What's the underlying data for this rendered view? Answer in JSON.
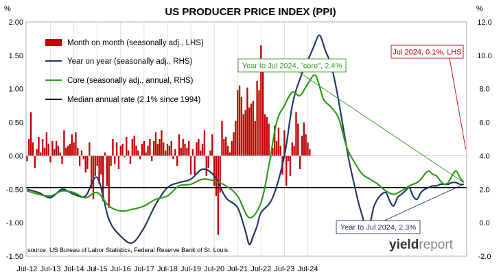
{
  "chart_data": {
    "type": "bar+line",
    "title": "US PRODUCER PRICE INDEX (PPI)",
    "left_axis": {
      "unit": "%",
      "ticks": [
        "2.00",
        "1.50",
        "1.00",
        "0.50",
        "0.00",
        "-0.50",
        "-1.00",
        "-1.50"
      ],
      "ylim": [
        -1.5,
        2.0
      ]
    },
    "right_axis": {
      "unit": "%",
      "ticks": [
        "12.0",
        "10.0",
        "8.0",
        "6.0",
        "4.0",
        "2.0",
        "0.0",
        "-2.0"
      ],
      "ylim": [
        -2.0,
        12.0
      ]
    },
    "x_ticks": [
      "Jul-12",
      "Jul-13",
      "Jul-14",
      "Jul-15",
      "Jul-16",
      "Jul-17",
      "Jul-18",
      "Jul-19",
      "Jul-20",
      "Jul-21",
      "Jul-22",
      "Jul-23",
      "Jul-24"
    ],
    "grid": "vertical",
    "legend_position": "top-left",
    "colors": {
      "mom": "#c00000",
      "yoy": "#1f3864",
      "core": "#2e9b1a",
      "median": "#000000"
    },
    "series": [
      {
        "name": "Month on month (seasonally adj., LHS)",
        "type": "bar",
        "axis": "left",
        "values": [
          -0.08,
          0.25,
          0.65,
          0.2,
          -0.18,
          0.1,
          0.28,
          0.05,
          0.25,
          0.12,
          0.35,
          0.18,
          -0.1,
          0.22,
          0.1,
          0.22,
          0.15,
          0.05,
          -0.12,
          0.38,
          0.12,
          0.15,
          0.18,
          0.32,
          0.2,
          0.35,
          0.12,
          -0.15,
          0.08,
          -0.05,
          -0.25,
          -0.2,
          0.2,
          -0.48,
          -0.65,
          -0.3,
          -0.15,
          -0.42,
          -0.28,
          -0.68,
          0.05,
          -0.45,
          -0.78,
          -0.15,
          0.25,
          -0.12,
          0.2,
          -0.2,
          0.15,
          0.18,
          -0.02,
          0.28,
          0.08,
          -0.12,
          0.25,
          0.3,
          0.15,
          0.08,
          -0.05,
          0.18,
          0.22,
          0.05,
          0.15,
          0.25,
          -0.08,
          0.22,
          0.35,
          0.18,
          0.25,
          0.38,
          0.2,
          0.08,
          0.18,
          0.15,
          0.22,
          -0.05,
          0.1,
          -0.15,
          0.32,
          0.12,
          0.25,
          0.18,
          0.12,
          0.22,
          -0.28,
          0.1,
          -0.28,
          0.2,
          0.25,
          0.08,
          0.18,
          0.38,
          -0.3,
          -0.18,
          0.08,
          0.32,
          -0.45,
          -0.6,
          -1.18,
          -0.55,
          0.52,
          0.25,
          0.28,
          0.15,
          0.05,
          0.22,
          0.35,
          0.52,
          0.98,
          1.05,
          0.88,
          0.62,
          0.68,
          1.02,
          0.72,
          0.78,
          0.82,
          0.52,
          1.12,
          0.98,
          1.65,
          1.35,
          0.62,
          0.58,
          0.48,
          -0.02,
          0.12,
          0.45,
          0.22,
          0.42,
          0.15,
          -0.28,
          0.38,
          -0.45,
          -0.08,
          -0.3,
          0.2,
          0.15,
          0.65,
          0.48,
          -0.2,
          0.3,
          0.5,
          0.32,
          0.2,
          0.1
        ]
      },
      {
        "name": "Year on year (seasonally adj., RHS)",
        "type": "line",
        "axis": "right",
        "x": [
          0,
          6,
          12,
          18,
          24,
          30,
          36,
          42,
          48,
          54,
          60,
          66,
          72,
          78,
          84,
          90,
          96,
          102,
          108,
          112,
          114,
          116,
          118,
          120,
          126,
          132,
          136,
          140,
          144,
          147,
          150,
          153,
          156,
          159,
          162,
          165,
          168,
          170,
          172,
          174,
          176,
          178,
          181,
          184,
          186,
          188,
          190,
          192,
          194,
          196,
          198,
          200,
          202,
          204,
          206,
          208,
          210,
          212,
          214,
          216,
          218,
          220,
          222,
          224
        ],
        "values": [
          2.0,
          1.8,
          1.5,
          2.0,
          1.7,
          1.6,
          2.7,
          0.2,
          -0.8,
          -1.2,
          -0.3,
          1.1,
          2.1,
          2.4,
          2.6,
          3.2,
          2.8,
          1.5,
          0.9,
          -0.5,
          -1.3,
          -0.8,
          -0.2,
          0.6,
          1.5,
          4.0,
          7.0,
          8.6,
          9.7,
          10.5,
          11.2,
          10.3,
          9.4,
          7.8,
          5.8,
          3.8,
          2.2,
          1.2,
          0.4,
          -0.4,
          0.0,
          1.0,
          1.6,
          1.8,
          1.3,
          1.0,
          1.5,
          1.7,
          1.9,
          2.1,
          1.6,
          1.4,
          1.8,
          2.0,
          2.1,
          2.2,
          2.2,
          2.3,
          2.3,
          2.3,
          2.4,
          2.4,
          2.3,
          2.3
        ]
      },
      {
        "name": "Core (seasonally adj., annual, RHS)",
        "type": "line",
        "axis": "right",
        "x": [
          0,
          6,
          12,
          18,
          24,
          30,
          36,
          42,
          48,
          54,
          60,
          66,
          72,
          78,
          84,
          90,
          96,
          102,
          108,
          114,
          120,
          124,
          128,
          132,
          136,
          140,
          144,
          148,
          152,
          156,
          160,
          164,
          168,
          172,
          176,
          180,
          184,
          188,
          192,
          196,
          198,
          200,
          202,
          204,
          206,
          208,
          210,
          212,
          214,
          216,
          218,
          220,
          222,
          224
        ],
        "values": [
          1.9,
          1.7,
          1.6,
          1.9,
          1.8,
          1.5,
          1.8,
          1.0,
          0.7,
          0.8,
          1.0,
          1.4,
          1.6,
          2.2,
          2.3,
          2.6,
          2.5,
          2.2,
          1.6,
          0.3,
          1.2,
          3.4,
          6.0,
          7.0,
          7.8,
          7.6,
          8.3,
          8.8,
          7.4,
          6.9,
          6.2,
          4.5,
          3.6,
          2.9,
          2.6,
          2.3,
          1.9,
          1.7,
          1.9,
          2.2,
          2.3,
          2.4,
          2.6,
          2.9,
          3.1,
          2.9,
          2.8,
          2.5,
          2.3,
          2.4,
          2.8,
          3.1,
          2.7,
          2.4
        ]
      },
      {
        "name": "Median annual rate (2.1% since 1994)",
        "type": "hline",
        "axis": "right",
        "value": 2.1
      }
    ],
    "annotations": [
      {
        "text": "Year to Jul 2024, \"core\", 2.4%",
        "color": "#2e9b1a"
      },
      {
        "text": "Jul 2024, 0.1%, LHS",
        "color": "#c00000"
      },
      {
        "text": "Year to Jul 2024, 2.3%",
        "color": "#1f3864"
      }
    ]
  },
  "source_text": "source: US Bureau of Labor Statistics, Federal Reserve Bank of St. Louis",
  "logo": {
    "part1": "yield",
    "part2": "report"
  }
}
